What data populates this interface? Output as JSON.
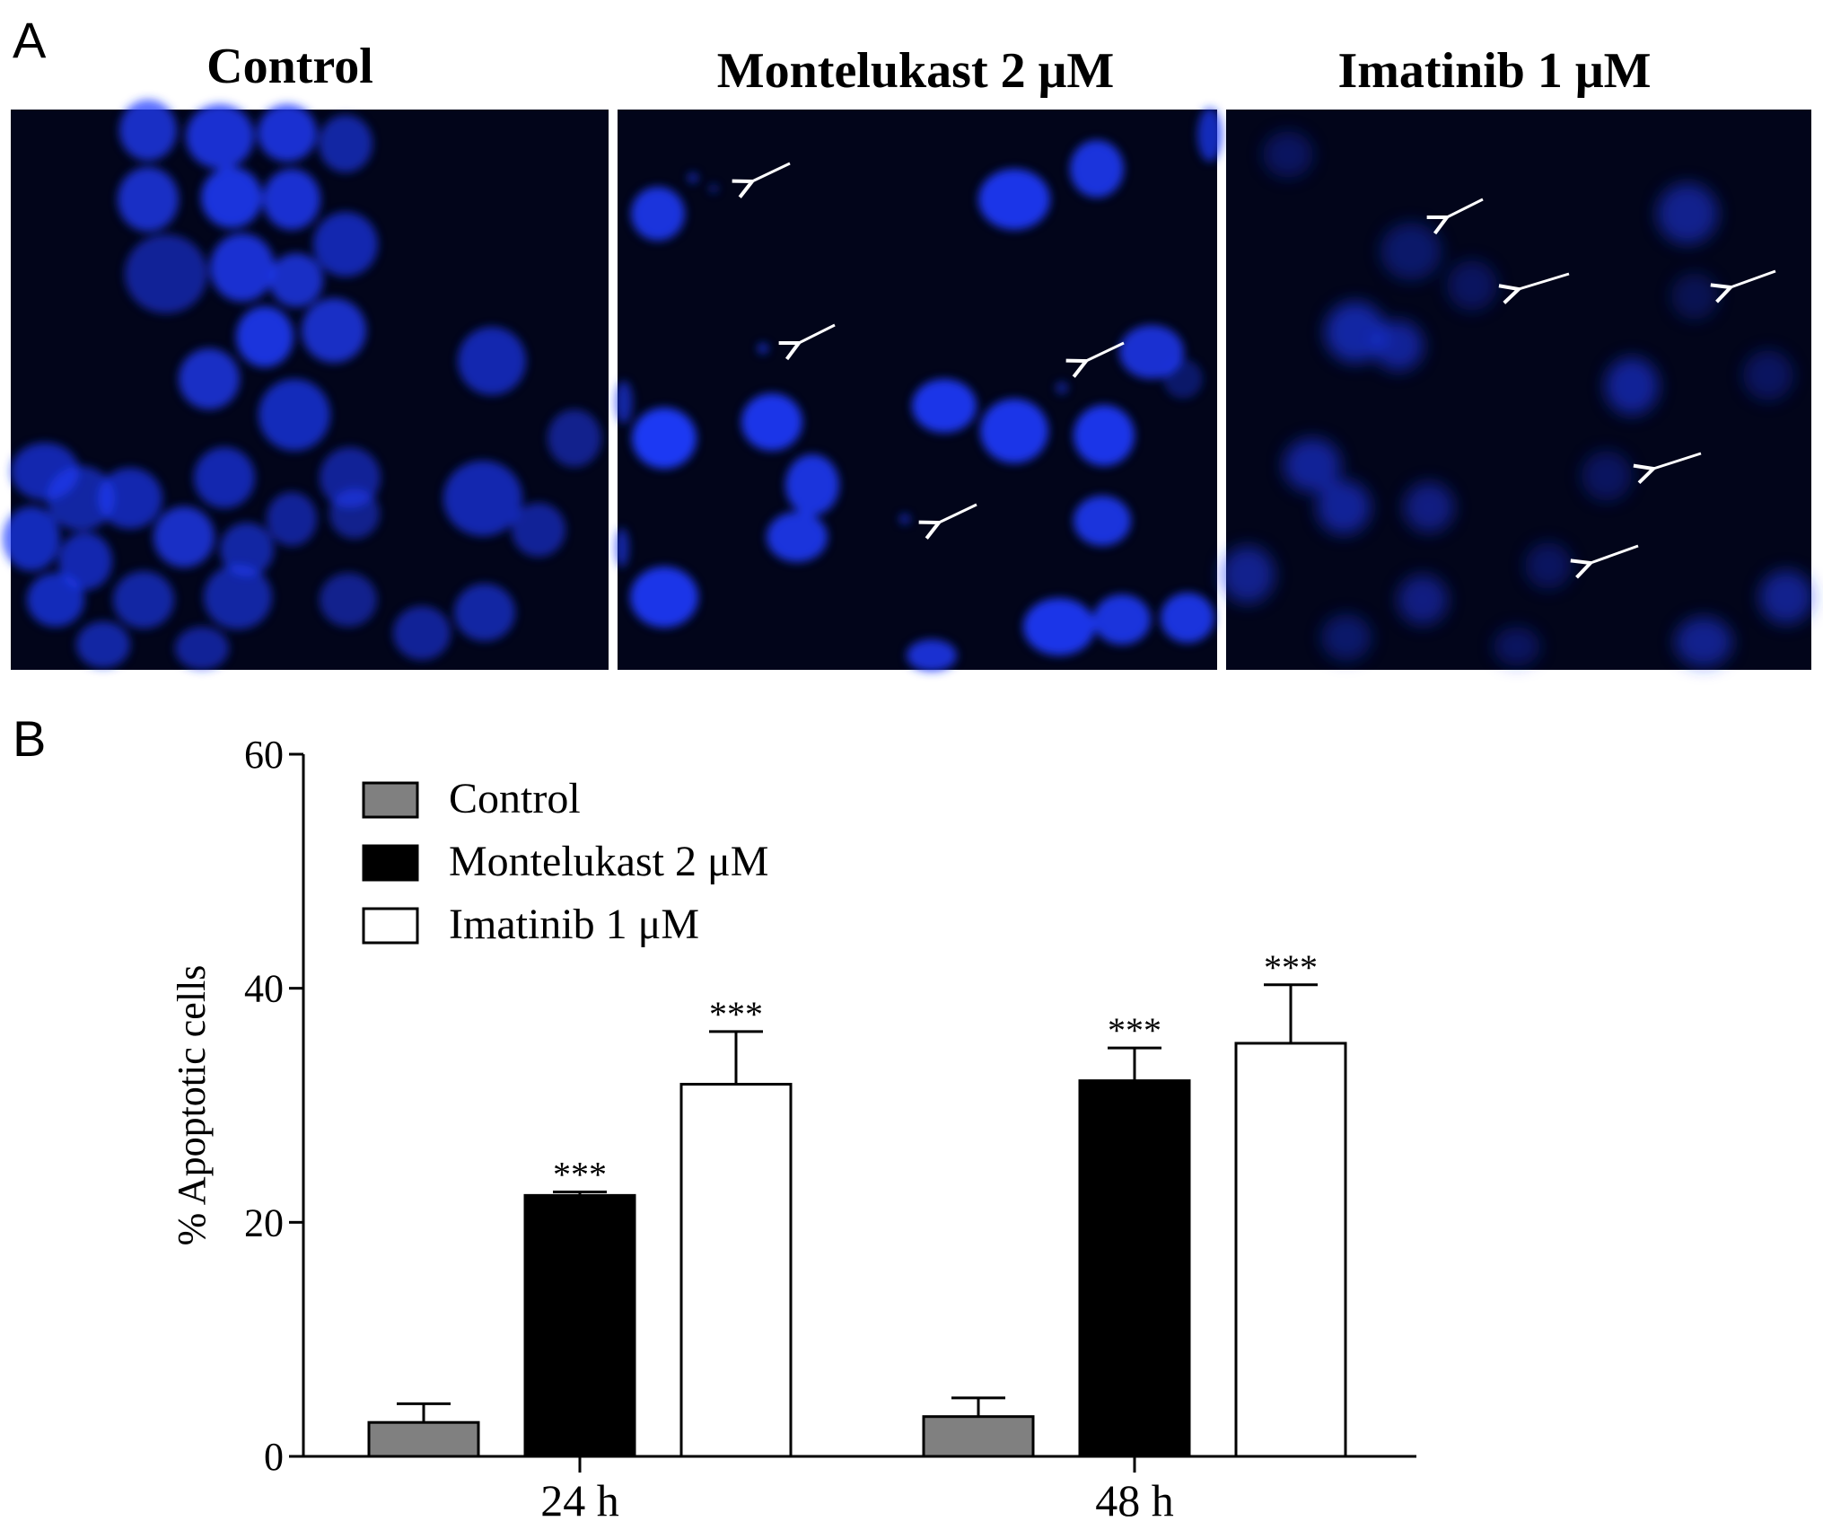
{
  "panels": {
    "a_letter": "A",
    "b_letter": "B",
    "micrographs": [
      {
        "title": "Control",
        "arrows": 0
      },
      {
        "title": "Montelukast 2 μM",
        "arrows": 4
      },
      {
        "title": "Imatinib 1 μM",
        "arrows": 5
      }
    ]
  },
  "colors": {
    "micrograph_bg": "#02051a",
    "nucleus": "#1f3cff",
    "control_bar": "#808080",
    "montelukast_bar": "#000000",
    "imatinib_bar": "#ffffff"
  },
  "chart_data": {
    "type": "bar",
    "title": "",
    "xlabel": "",
    "ylabel": "% Apoptotic cells",
    "ylim": [
      0,
      60
    ],
    "yticks": [
      "0",
      "20",
      "40",
      "60"
    ],
    "categories": [
      "24 h",
      "48 h"
    ],
    "legend_position": "top-left",
    "grid": false,
    "series": [
      {
        "name": "Control",
        "color": "#808080",
        "values": [
          2.9,
          3.4
        ],
        "errors": [
          1.6,
          1.6
        ],
        "labels": [
          "",
          ""
        ]
      },
      {
        "name": "Montelukast 2 μM",
        "color": "#000000",
        "values": [
          22.3,
          32.1
        ],
        "errors": [
          0.3,
          2.8
        ],
        "labels": [
          "***",
          "***"
        ]
      },
      {
        "name": "Imatinib 1 μM",
        "color": "#ffffff",
        "values": [
          31.8,
          35.3
        ],
        "errors": [
          4.5,
          5.0
        ],
        "labels": [
          "***",
          "***"
        ]
      }
    ]
  }
}
